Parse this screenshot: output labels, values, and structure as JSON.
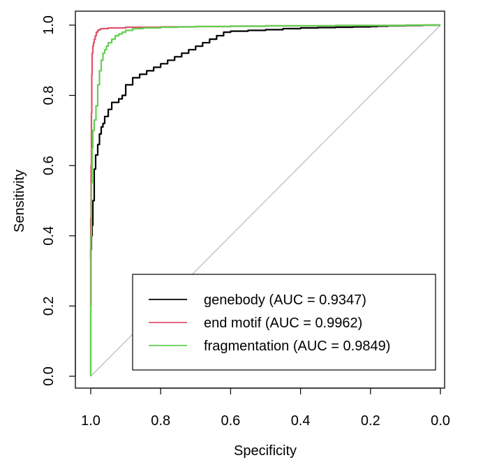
{
  "chart_data": {
    "type": "line",
    "title": "",
    "xlabel": "Specificity",
    "ylabel": "Sensitivity",
    "xlim": [
      1.0,
      0.0
    ],
    "ylim": [
      0.0,
      1.0
    ],
    "x_reversed": true,
    "x_ticks": [
      1.0,
      0.8,
      0.6,
      0.4,
      0.2,
      0.0
    ],
    "x_tick_labels": [
      "1.0",
      "0.8",
      "0.6",
      "0.4",
      "0.2",
      "0.0"
    ],
    "y_ticks": [
      0.0,
      0.2,
      0.4,
      0.6,
      0.8,
      1.0
    ],
    "y_tick_labels": [
      "0.0",
      "0.2",
      "0.4",
      "0.6",
      "0.8",
      "1.0"
    ],
    "grid": false,
    "legend_position": "bottom-right",
    "reference_line": {
      "x": [
        1.0,
        0.0
      ],
      "y": [
        0.0,
        1.0
      ],
      "color": "#bebebe"
    },
    "series": [
      {
        "name": "genebody (AUC = 0.9347)",
        "color": "#000000",
        "x": [
          1.0,
          0.998,
          0.996,
          0.994,
          0.99,
          0.986,
          0.98,
          0.975,
          0.97,
          0.965,
          0.96,
          0.95,
          0.94,
          0.93,
          0.92,
          0.91,
          0.9,
          0.88,
          0.86,
          0.84,
          0.82,
          0.8,
          0.78,
          0.76,
          0.74,
          0.72,
          0.7,
          0.68,
          0.66,
          0.64,
          0.62,
          0.6,
          0.55,
          0.5,
          0.45,
          0.4,
          0.35,
          0.3,
          0.25,
          0.2,
          0.18,
          0.15,
          0.1,
          0.05,
          0.0
        ],
        "y": [
          0.33,
          0.36,
          0.4,
          0.43,
          0.5,
          0.59,
          0.63,
          0.66,
          0.69,
          0.71,
          0.72,
          0.74,
          0.76,
          0.78,
          0.78,
          0.79,
          0.8,
          0.83,
          0.85,
          0.86,
          0.87,
          0.88,
          0.89,
          0.9,
          0.91,
          0.92,
          0.93,
          0.94,
          0.95,
          0.96,
          0.97,
          0.98,
          0.983,
          0.985,
          0.987,
          0.99,
          0.992,
          0.993,
          0.994,
          0.995,
          0.996,
          0.997,
          0.998,
          0.999,
          1.0
        ]
      },
      {
        "name": "end motif (AUC = 0.9962)",
        "color": "#df536b",
        "x": [
          1.0,
          0.999,
          0.998,
          0.997,
          0.996,
          0.994,
          0.992,
          0.99,
          0.987,
          0.984,
          0.98,
          0.975,
          0.97,
          0.95,
          0.9,
          0.8,
          0.7,
          0.6,
          0.5,
          0.4,
          0.3,
          0.2,
          0.1,
          0.0
        ],
        "y": [
          0.0,
          0.45,
          0.6,
          0.75,
          0.86,
          0.92,
          0.94,
          0.95,
          0.96,
          0.97,
          0.98,
          0.985,
          0.988,
          0.99,
          0.992,
          0.994,
          0.995,
          0.996,
          0.997,
          0.998,
          0.998,
          0.999,
          0.999,
          1.0
        ]
      },
      {
        "name": "fragmentation (AUC = 0.9849)",
        "color": "#61d04f",
        "x": [
          1.0,
          0.999,
          0.998,
          0.996,
          0.994,
          0.99,
          0.985,
          0.98,
          0.975,
          0.97,
          0.965,
          0.96,
          0.955,
          0.95,
          0.94,
          0.93,
          0.92,
          0.91,
          0.9,
          0.88,
          0.85,
          0.8,
          0.75,
          0.7,
          0.6,
          0.5,
          0.4,
          0.3,
          0.2,
          0.1,
          0.0
        ],
        "y": [
          0.0,
          0.2,
          0.4,
          0.55,
          0.65,
          0.7,
          0.73,
          0.77,
          0.83,
          0.87,
          0.9,
          0.92,
          0.93,
          0.94,
          0.95,
          0.96,
          0.97,
          0.975,
          0.98,
          0.985,
          0.99,
          0.992,
          0.994,
          0.995,
          0.996,
          0.997,
          0.998,
          0.998,
          0.999,
          0.999,
          1.0
        ]
      }
    ]
  }
}
